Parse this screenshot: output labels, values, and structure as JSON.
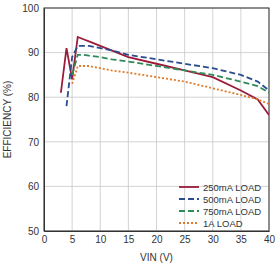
{
  "chart_data": {
    "type": "line",
    "x_label": "VIN (V)",
    "y_label": "EFFICIENCY (%)",
    "x": [
      3,
      4,
      5,
      6,
      7,
      8,
      10,
      12,
      15,
      20,
      25,
      30,
      35,
      38,
      40
    ],
    "series": [
      {
        "name": "250mA LOAD",
        "color": "#9b1c3a",
        "line_style": "solid",
        "values": [
          81,
          91,
          84,
          93.5,
          93,
          92.5,
          91.5,
          90.5,
          89,
          87.5,
          86,
          84.5,
          81.5,
          79.5,
          76
        ]
      },
      {
        "name": "500mA LOAD",
        "color": "#2b4d8f",
        "line_style": "dashed",
        "values": [
          null,
          78,
          89,
          91.5,
          91.5,
          91.5,
          91,
          90.5,
          89.5,
          88.5,
          87.5,
          86.5,
          85,
          83.5,
          81.5
        ]
      },
      {
        "name": "750mA LOAD",
        "color": "#2e8b57",
        "line_style": "dashed",
        "values": [
          null,
          null,
          85,
          89.5,
          89.5,
          89.3,
          89,
          88.5,
          88,
          87,
          86,
          85,
          83.5,
          82.5,
          81
        ]
      },
      {
        "name": "1A LOAD",
        "color": "#e07b2a",
        "line_style": "dotted",
        "values": [
          null,
          null,
          83,
          87,
          87,
          87,
          86.5,
          86,
          85.5,
          84.5,
          83.5,
          82,
          80.5,
          79.5,
          78.5
        ]
      }
    ],
    "xlim": [
      0,
      40
    ],
    "xticks": [
      0,
      5,
      10,
      15,
      20,
      25,
      30,
      35,
      40
    ],
    "ylim": [
      50,
      100
    ],
    "yticks": [
      50,
      60,
      70,
      80,
      90,
      100
    ],
    "grid": true,
    "legend": "lower right"
  }
}
